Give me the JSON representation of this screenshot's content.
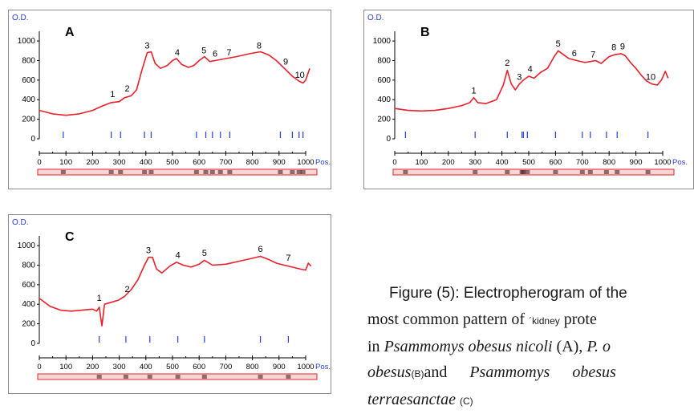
{
  "chart_data": [
    {
      "type": "line",
      "panel_label": "A",
      "ylabel": "O.D.",
      "xlabel": "Pos.",
      "yticks": [
        0,
        200,
        400,
        600,
        800,
        1000
      ],
      "xticks": [
        0,
        100,
        200,
        300,
        400,
        500,
        600,
        700,
        800,
        900,
        1000
      ],
      "xlim": [
        0,
        1000
      ],
      "ylim": [
        0,
        1050
      ],
      "line_color": "#e8202a",
      "series": [
        {
          "points": [
            [
              0,
              290
            ],
            [
              50,
              255
            ],
            [
              100,
              240
            ],
            [
              150,
              255
            ],
            [
              200,
              290
            ],
            [
              240,
              340
            ],
            [
              270,
              370
            ],
            [
              300,
              380
            ],
            [
              320,
              420
            ],
            [
              345,
              440
            ],
            [
              365,
              500
            ],
            [
              385,
              700
            ],
            [
              405,
              880
            ],
            [
              420,
              890
            ],
            [
              435,
              770
            ],
            [
              455,
              720
            ],
            [
              480,
              750
            ],
            [
              500,
              800
            ],
            [
              515,
              820
            ],
            [
              535,
              760
            ],
            [
              560,
              730
            ],
            [
              580,
              750
            ],
            [
              600,
              800
            ],
            [
              620,
              840
            ],
            [
              640,
              790
            ],
            [
              660,
              800
            ],
            [
              700,
              820
            ],
            [
              740,
              840
            ],
            [
              790,
              870
            ],
            [
              830,
              890
            ],
            [
              860,
              860
            ],
            [
              890,
              800
            ],
            [
              920,
              720
            ],
            [
              950,
              640
            ],
            [
              975,
              590
            ],
            [
              990,
              570
            ],
            [
              1000,
              600
            ],
            [
              1015,
              720
            ]
          ]
        }
      ],
      "peak_labels": [
        {
          "label": "1",
          "x": 275,
          "y": 400
        },
        {
          "label": "2",
          "x": 330,
          "y": 460
        },
        {
          "label": "3",
          "x": 405,
          "y": 900
        },
        {
          "label": "4",
          "x": 518,
          "y": 830
        },
        {
          "label": "5",
          "x": 618,
          "y": 850
        },
        {
          "label": "6",
          "x": 660,
          "y": 815
        },
        {
          "label": "7",
          "x": 712,
          "y": 830
        },
        {
          "label": "8",
          "x": 825,
          "y": 900
        },
        {
          "label": "9",
          "x": 925,
          "y": 735
        },
        {
          "label": "10",
          "x": 978,
          "y": 600
        }
      ],
      "band_positions": [
        90,
        270,
        305,
        395,
        420,
        590,
        625,
        650,
        680,
        715,
        905,
        950,
        975,
        990
      ]
    },
    {
      "type": "line",
      "panel_label": "B",
      "ylabel": "O.D.",
      "xlabel": "Pos.",
      "yticks": [
        0,
        200,
        400,
        600,
        800,
        1000
      ],
      "xticks": [
        0,
        100,
        200,
        300,
        400,
        500,
        600,
        700,
        800,
        900,
        1000
      ],
      "xlim": [
        0,
        1000
      ],
      "ylim": [
        0,
        1050
      ],
      "line_color": "#e8202a",
      "series": [
        {
          "points": [
            [
              0,
              310
            ],
            [
              50,
              290
            ],
            [
              100,
              285
            ],
            [
              150,
              290
            ],
            [
              200,
              310
            ],
            [
              250,
              340
            ],
            [
              280,
              370
            ],
            [
              295,
              420
            ],
            [
              310,
              370
            ],
            [
              340,
              360
            ],
            [
              380,
              400
            ],
            [
              405,
              550
            ],
            [
              420,
              700
            ],
            [
              435,
              560
            ],
            [
              450,
              500
            ],
            [
              465,
              560
            ],
            [
              480,
              600
            ],
            [
              500,
              640
            ],
            [
              520,
              620
            ],
            [
              545,
              680
            ],
            [
              570,
              720
            ],
            [
              595,
              840
            ],
            [
              610,
              900
            ],
            [
              630,
              860
            ],
            [
              650,
              820
            ],
            [
              680,
              800
            ],
            [
              710,
              780
            ],
            [
              730,
              790
            ],
            [
              750,
              800
            ],
            [
              770,
              770
            ],
            [
              800,
              840
            ],
            [
              820,
              860
            ],
            [
              845,
              870
            ],
            [
              860,
              850
            ],
            [
              880,
              780
            ],
            [
              900,
              720
            ],
            [
              920,
              650
            ],
            [
              940,
              590
            ],
            [
              960,
              560
            ],
            [
              980,
              550
            ],
            [
              995,
              600
            ],
            [
              1010,
              690
            ],
            [
              1020,
              620
            ]
          ]
        }
      ],
      "peak_labels": [
        {
          "label": "1",
          "x": 295,
          "y": 440
        },
        {
          "label": "2",
          "x": 420,
          "y": 720
        },
        {
          "label": "3",
          "x": 465,
          "y": 580
        },
        {
          "label": "4",
          "x": 505,
          "y": 660
        },
        {
          "label": "5",
          "x": 610,
          "y": 920
        },
        {
          "label": "6",
          "x": 670,
          "y": 820
        },
        {
          "label": "7",
          "x": 740,
          "y": 810
        },
        {
          "label": "8",
          "x": 818,
          "y": 880
        },
        {
          "label": "9",
          "x": 850,
          "y": 890
        },
        {
          "label": "10",
          "x": 955,
          "y": 580
        }
      ],
      "band_positions": [
        40,
        300,
        420,
        475,
        480,
        495,
        600,
        700,
        730,
        790,
        830,
        945
      ]
    },
    {
      "type": "line",
      "panel_label": "C",
      "ylabel": "O.D.",
      "xlabel": "Pos.",
      "yticks": [
        0,
        200,
        400,
        600,
        800,
        1000
      ],
      "xticks": [
        0,
        100,
        200,
        300,
        400,
        500,
        600,
        700,
        800,
        900,
        1000
      ],
      "xlim": [
        0,
        1000
      ],
      "ylim": [
        0,
        1050
      ],
      "line_color": "#e8202a",
      "series": [
        {
          "points": [
            [
              0,
              460
            ],
            [
              40,
              380
            ],
            [
              80,
              340
            ],
            [
              120,
              330
            ],
            [
              160,
              340
            ],
            [
              200,
              350
            ],
            [
              215,
              330
            ],
            [
              225,
              370
            ],
            [
              235,
              180
            ],
            [
              245,
              400
            ],
            [
              270,
              420
            ],
            [
              295,
              440
            ],
            [
              320,
              480
            ],
            [
              345,
              550
            ],
            [
              370,
              650
            ],
            [
              395,
              800
            ],
            [
              410,
              880
            ],
            [
              425,
              880
            ],
            [
              440,
              760
            ],
            [
              460,
              720
            ],
            [
              490,
              790
            ],
            [
              515,
              830
            ],
            [
              540,
              800
            ],
            [
              570,
              780
            ],
            [
              600,
              810
            ],
            [
              620,
              850
            ],
            [
              650,
              800
            ],
            [
              700,
              810
            ],
            [
              750,
              840
            ],
            [
              800,
              870
            ],
            [
              830,
              890
            ],
            [
              860,
              860
            ],
            [
              890,
              820
            ],
            [
              920,
              800
            ],
            [
              950,
              780
            ],
            [
              980,
              760
            ],
            [
              1000,
              750
            ],
            [
              1010,
              820
            ],
            [
              1020,
              790
            ]
          ]
        }
      ],
      "peak_labels": [
        {
          "label": "1",
          "x": 225,
          "y": 410
        },
        {
          "label": "2",
          "x": 330,
          "y": 500
        },
        {
          "label": "3",
          "x": 410,
          "y": 900
        },
        {
          "label": "4",
          "x": 520,
          "y": 850
        },
        {
          "label": "5",
          "x": 620,
          "y": 870
        },
        {
          "label": "6",
          "x": 830,
          "y": 910
        },
        {
          "label": "7",
          "x": 935,
          "y": 820
        }
      ],
      "band_positions": [
        225,
        325,
        415,
        520,
        620,
        830,
        935
      ]
    }
  ],
  "caption": {
    "line1": "Figure (5): Electropherogram of the",
    "line2a": "most common pattern of",
    "line2_tick": "´",
    "line2_small": "kidney",
    "line2b": "prote",
    "line3a": "in",
    "line3_it1": "Psammomys obesus nicoli",
    "line3b": "(A),",
    "line3_it2": "P. o",
    "line4_it1": "obesus",
    "line4_small": "(B)",
    "line4b": "and",
    "line4_it2": "Psammomys",
    "line4_it3": "obesus",
    "line5_it": "terraesanctae",
    "line5_small": "(C)"
  }
}
